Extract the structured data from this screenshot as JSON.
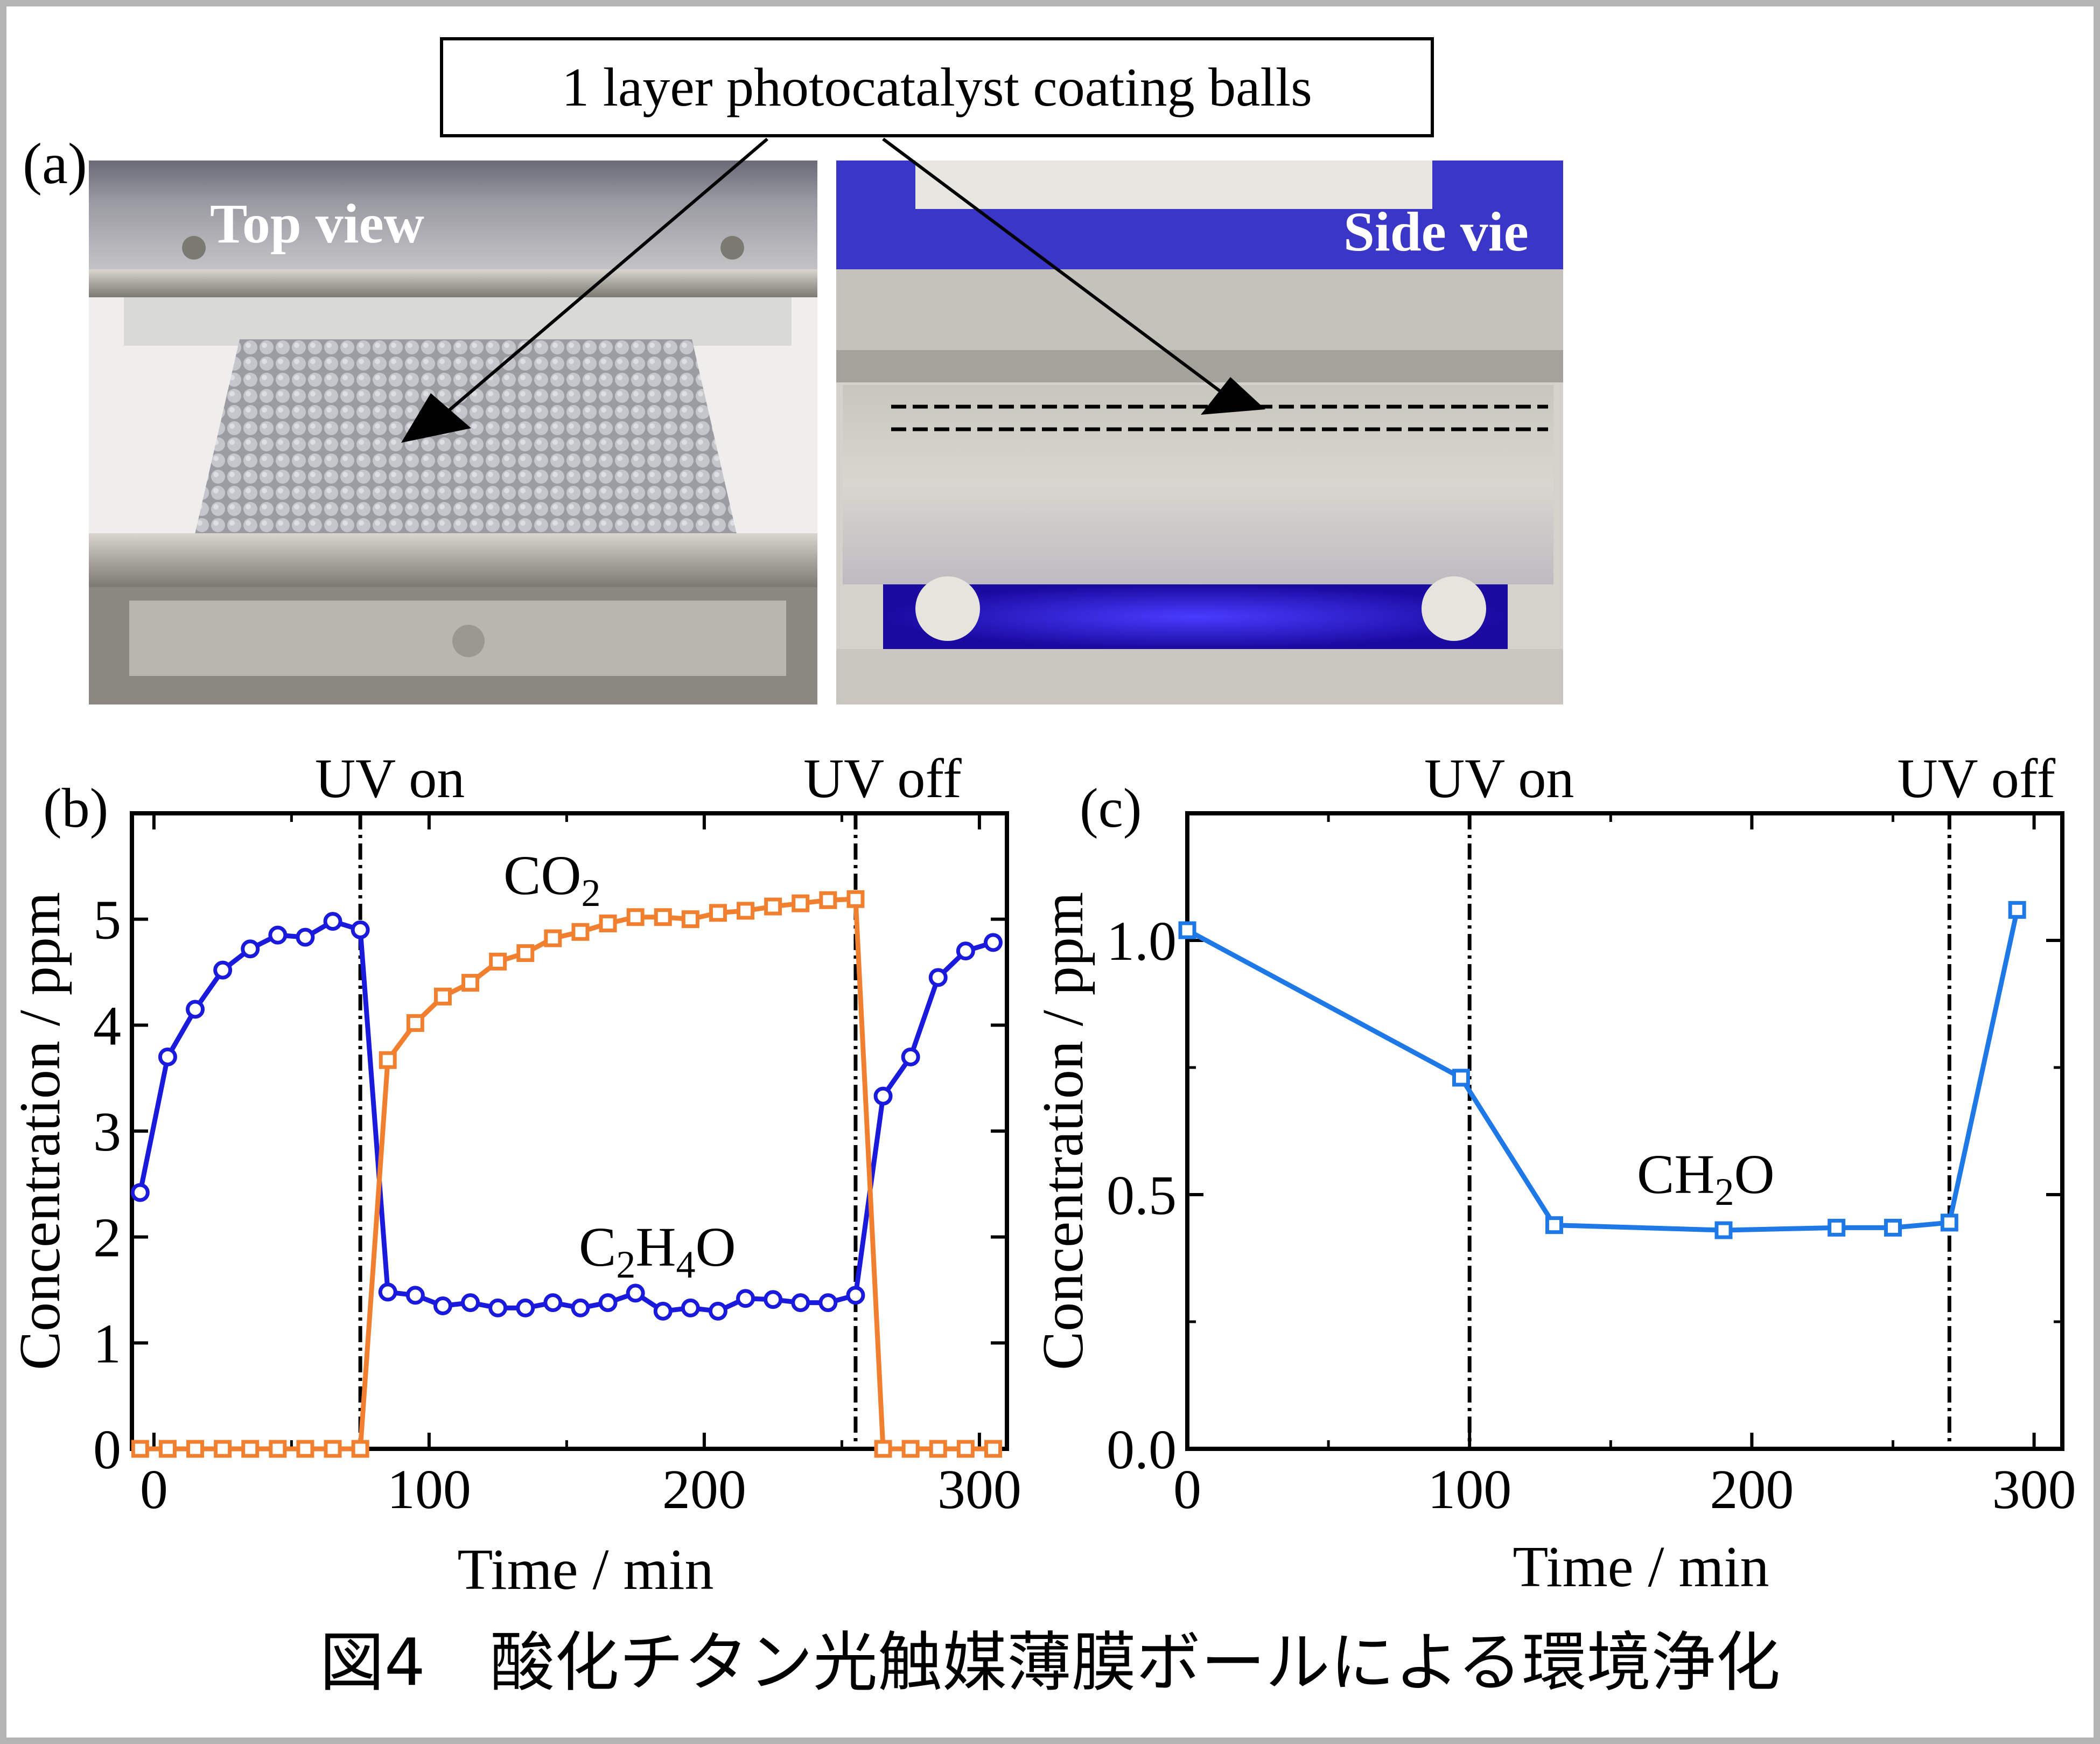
{
  "panel_a": {
    "label": "(a)",
    "callout": "1 layer photocatalyst coating balls",
    "top_view_label": "Top view",
    "side_view_label": "Side vie"
  },
  "caption": "図4　酸化チタン光触媒薄膜ボールによる環境浄化",
  "colors": {
    "c2h4o": "#1a1adc",
    "co2": "#f08030",
    "ch2o": "#1e78e6",
    "frame": "#b4b4b4"
  },
  "chart_data": [
    {
      "panel": "(b)",
      "type": "line",
      "xlabel": "Time / min",
      "ylabel": "Concentration / ppm",
      "xlim": [
        -8,
        310
      ],
      "ylim": [
        0,
        6
      ],
      "xticks": [
        0,
        100,
        200,
        300
      ],
      "yticks": [
        0,
        1,
        2,
        3,
        4,
        5
      ],
      "annotations": [
        {
          "text": "UV on",
          "x": 75
        },
        {
          "text": "UV off",
          "x": 255
        }
      ],
      "series": [
        {
          "name": "C2H4O",
          "marker": "circle",
          "x": [
            -5,
            5,
            15,
            25,
            35,
            45,
            55,
            65,
            75,
            85,
            95,
            105,
            115,
            125,
            135,
            145,
            155,
            165,
            175,
            185,
            195,
            205,
            215,
            225,
            235,
            245,
            255,
            265,
            275,
            285,
            295,
            305
          ],
          "y": [
            2.42,
            3.7,
            4.15,
            4.52,
            4.72,
            4.85,
            4.83,
            4.98,
            4.9,
            1.48,
            1.45,
            1.35,
            1.38,
            1.33,
            1.33,
            1.38,
            1.33,
            1.38,
            1.47,
            1.3,
            1.33,
            1.3,
            1.42,
            1.41,
            1.38,
            1.38,
            1.45,
            3.33,
            3.7,
            4.45,
            4.7,
            4.78
          ]
        },
        {
          "name": "CO2",
          "marker": "square",
          "x": [
            -5,
            5,
            15,
            25,
            35,
            45,
            55,
            65,
            75,
            85,
            95,
            105,
            115,
            125,
            135,
            145,
            155,
            165,
            175,
            185,
            195,
            205,
            215,
            225,
            235,
            245,
            255,
            265,
            275,
            285,
            295,
            305
          ],
          "y": [
            0,
            0,
            0,
            0,
            0,
            0,
            0,
            0,
            0,
            3.67,
            4.02,
            4.27,
            4.4,
            4.6,
            4.68,
            4.82,
            4.88,
            4.96,
            5.02,
            5.02,
            5.0,
            5.06,
            5.08,
            5.12,
            5.15,
            5.18,
            5.19,
            0,
            0,
            0,
            0,
            0
          ]
        }
      ],
      "series_labels": {
        "co2": {
          "base": "CO",
          "sub": "2"
        },
        "c2h4o": {
          "c": "C",
          "s1": "2",
          "h": "H",
          "s2": "4",
          "o": "O"
        }
      }
    },
    {
      "panel": "(c)",
      "type": "line",
      "xlabel": "Time / min",
      "ylabel": "Concentration / ppm",
      "xlim": [
        0,
        310
      ],
      "ylim": [
        0,
        1.25
      ],
      "xticks": [
        0,
        100,
        200,
        300
      ],
      "yticks": [
        0.0,
        0.5,
        1.0
      ],
      "ytick_labels": [
        "0.0",
        "0.5",
        "1.0"
      ],
      "annotations": [
        {
          "text": "UV on",
          "x": 100
        },
        {
          "text": "UV off",
          "x": 270
        }
      ],
      "series": [
        {
          "name": "CH2O",
          "marker": "square",
          "x": [
            0,
            97,
            130,
            190,
            230,
            250,
            270,
            294
          ],
          "y": [
            1.02,
            0.73,
            0.44,
            0.43,
            0.435,
            0.435,
            0.445,
            1.06
          ]
        }
      ],
      "series_labels": {
        "ch2o": {
          "c": "CH",
          "s": "2",
          "o": "O"
        }
      }
    }
  ]
}
